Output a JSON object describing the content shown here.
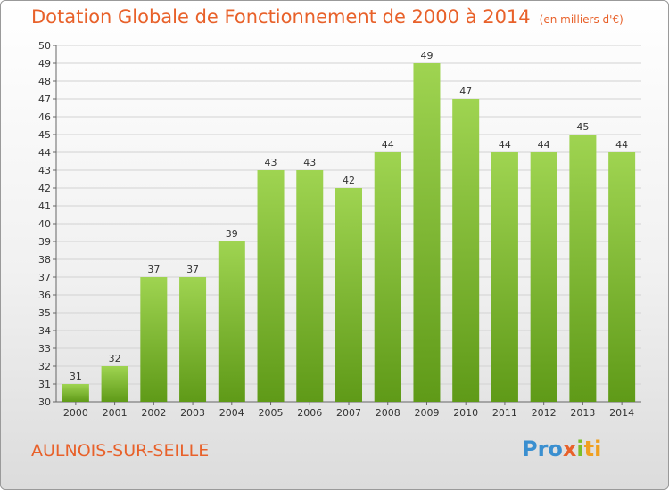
{
  "title": "Dotation Globale de Fonctionnement de 2000 à 2014",
  "unit": "(en milliers d'€)",
  "commune": "AULNOIS-SUR-SEILLE",
  "logo": {
    "part1": "Pro",
    "part2": "x",
    "part3": "i",
    "part4": "ti"
  },
  "colors": {
    "bar_top": "#9fd451",
    "bar_bottom": "#5f9a18",
    "title": "#e8612a"
  },
  "chart_data": {
    "type": "bar",
    "categories": [
      "2000",
      "2001",
      "2002",
      "2003",
      "2004",
      "2005",
      "2006",
      "2007",
      "2008",
      "2009",
      "2010",
      "2011",
      "2012",
      "2013",
      "2014"
    ],
    "values": [
      31,
      32,
      37,
      37,
      39,
      43,
      43,
      42,
      44,
      49,
      47,
      44,
      44,
      45,
      44
    ],
    "title": "Dotation Globale de Fonctionnement de 2000 à 2014",
    "ylim": [
      30,
      50
    ],
    "yticks": [
      30,
      31,
      32,
      33,
      34,
      35,
      36,
      37,
      38,
      39,
      40,
      41,
      42,
      43,
      44,
      45,
      46,
      47,
      48,
      49,
      50
    ],
    "grid": true,
    "data_labels": true
  }
}
